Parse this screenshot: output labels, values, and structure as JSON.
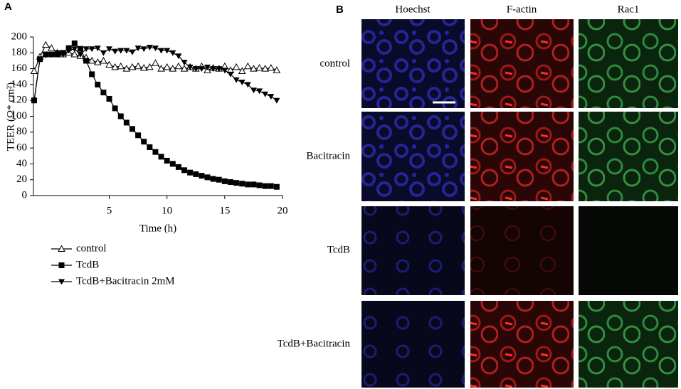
{
  "panel_a_label": "A",
  "chart_data": {
    "type": "line",
    "x_label": "Time (h)",
    "y_label": "TEER (Ω* cm²)",
    "x": [
      -1.5,
      -1,
      -0.5,
      0,
      0.5,
      1,
      1.5,
      2,
      2.5,
      3,
      3.5,
      4,
      4.5,
      5,
      5.5,
      6,
      6.5,
      7,
      7.5,
      8,
      8.5,
      9,
      9.5,
      10,
      10.5,
      11,
      11.5,
      12,
      12.5,
      13,
      13.5,
      14,
      14.5,
      15,
      15.5,
      16,
      16.5,
      17,
      17.5,
      18,
      18.5,
      19,
      19.5
    ],
    "xlim": [
      -1.5,
      20
    ],
    "xticks": [
      5,
      10,
      15,
      20
    ],
    "ylim": [
      0,
      200
    ],
    "yticks": [
      0,
      20,
      40,
      60,
      80,
      100,
      120,
      140,
      160,
      180,
      200
    ],
    "grid": false,
    "series": [
      {
        "name": "control",
        "color": "#000000",
        "marker": "triangle-open",
        "values": [
          157,
          175,
          190,
          186,
          180,
          178,
          180,
          178,
          176,
          174,
          170,
          168,
          170,
          165,
          162,
          163,
          160,
          162,
          163,
          161,
          162,
          167,
          160,
          162,
          160,
          163,
          160,
          162,
          160,
          163,
          158,
          161,
          160,
          163,
          158,
          162,
          157,
          163,
          160,
          161,
          160,
          161,
          158
        ]
      },
      {
        "name": "TcdB",
        "color": "#000000",
        "marker": "square",
        "values": [
          120,
          172,
          178,
          178,
          178,
          180,
          186,
          192,
          185,
          170,
          153,
          140,
          130,
          122,
          110,
          100,
          92,
          84,
          76,
          68,
          61,
          55,
          49,
          44,
          40,
          36,
          32,
          29,
          27,
          25,
          23,
          21,
          20,
          18,
          17,
          16,
          15,
          14,
          14,
          13,
          12,
          12,
          11
        ]
      },
      {
        "name": "TcdB+Bacitracin 2mM",
        "color": "#000000",
        "marker": "triangle-down",
        "values": [
          120,
          172,
          177,
          178,
          180,
          178,
          183,
          185,
          178,
          185,
          185,
          186,
          180,
          185,
          182,
          183,
          183,
          181,
          186,
          185,
          187,
          186,
          183,
          183,
          180,
          176,
          168,
          162,
          160,
          160,
          162,
          160,
          160,
          158,
          153,
          146,
          143,
          140,
          133,
          132,
          128,
          125,
          120
        ]
      }
    ]
  },
  "panel_b": {
    "label": "B",
    "columns": [
      "Hoechst",
      "F-actin",
      "Rac1"
    ],
    "rows": [
      "control",
      "Bacitracin",
      "TcdB",
      "TcdB+Bacitracin"
    ]
  }
}
